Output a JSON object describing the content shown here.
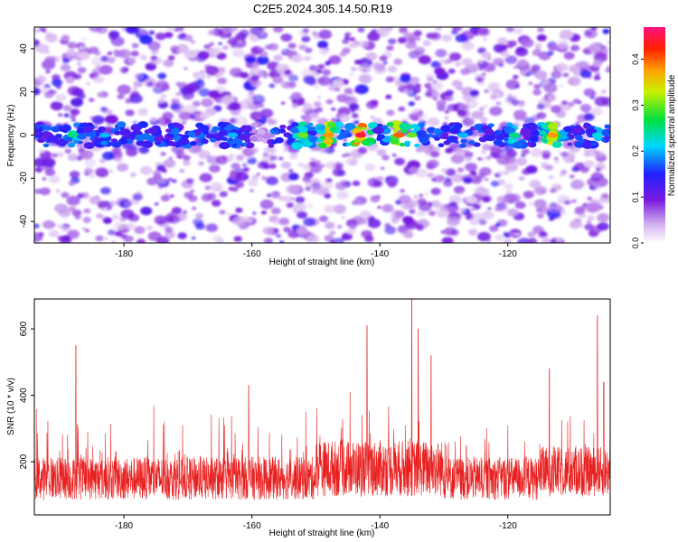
{
  "title": "C2E5.2024.305.14.50.R19",
  "chart_data": [
    {
      "type": "heatmap",
      "xlabel": "Height of straight line (km)",
      "ylabel": "Frequency (Hz)",
      "xlim": [
        -194,
        -104
      ],
      "ylim": [
        -50,
        50
      ],
      "xticks": [
        -180,
        -160,
        -140,
        -120
      ],
      "yticks": [
        -40,
        -20,
        0,
        20,
        40
      ],
      "grid": false,
      "colorbar": {
        "label": "Normalized spectral amplitude",
        "range": [
          0.0,
          0.47
        ],
        "ticks": [
          0.0,
          0.1,
          0.2,
          0.3,
          0.4
        ]
      },
      "band": {
        "center_frequency": 0,
        "half_width": 5,
        "peaks": [
          {
            "x": -188,
            "amplitude": 0.25
          },
          {
            "x": -183,
            "amplitude": 0.2
          },
          {
            "x": -163,
            "amplitude": 0.2
          },
          {
            "x": -152,
            "amplitude": 0.3
          },
          {
            "x": -148,
            "amplitude": 0.38
          },
          {
            "x": -143,
            "amplitude": 0.45
          },
          {
            "x": -137,
            "amplitude": 0.4
          },
          {
            "x": -135,
            "amplitude": 0.3
          },
          {
            "x": -127,
            "amplitude": 0.2
          },
          {
            "x": -119,
            "amplitude": 0.25
          },
          {
            "x": -113,
            "amplitude": 0.38
          },
          {
            "x": -106,
            "amplitude": 0.22
          }
        ]
      }
    },
    {
      "type": "line",
      "xlabel": "Height of straight line (km)",
      "ylabel": "SNR (10 * v/v)",
      "xlim": [
        -194,
        -104
      ],
      "ylim": [
        40,
        690
      ],
      "xticks": [
        -180,
        -160,
        -140,
        -120
      ],
      "yticks": [
        200,
        400,
        600
      ],
      "grid": false,
      "series_color": "#e82020",
      "spikes": [
        {
          "x": -187.5,
          "value": 550
        },
        {
          "x": -160.5,
          "value": 430
        },
        {
          "x": -142,
          "value": 610
        },
        {
          "x": -135,
          "value": 690
        },
        {
          "x": -134,
          "value": 600
        },
        {
          "x": -132,
          "value": 520
        },
        {
          "x": -113.5,
          "value": 480
        },
        {
          "x": -106,
          "value": 640
        },
        {
          "x": -105,
          "value": 440
        }
      ]
    }
  ]
}
